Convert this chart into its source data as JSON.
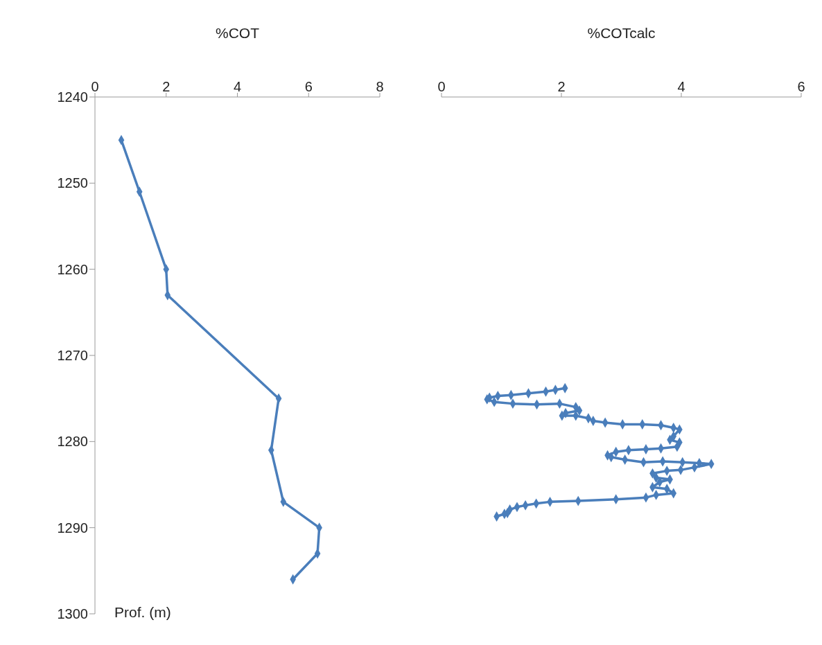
{
  "chart_data": [
    {
      "type": "line",
      "xlabel": "%COT",
      "ylabel": "Prof. (m)",
      "marker": "diamond",
      "xlim": [
        0,
        8
      ],
      "xticks": [
        0,
        2,
        4,
        6,
        8
      ],
      "ylim": [
        1300,
        1240
      ],
      "yticks": [
        1240,
        1250,
        1260,
        1270,
        1280,
        1290,
        1300
      ],
      "series": [
        {
          "color": "#4a7ebb",
          "x": [
            0.74,
            1.25,
            2.0,
            2.04,
            5.16,
            4.95,
            5.29,
            6.3,
            6.25,
            5.56
          ],
          "values": [
            1245,
            1251,
            1260,
            1263,
            1275,
            1281,
            1287,
            1290,
            1293,
            1296
          ]
        }
      ]
    },
    {
      "type": "line",
      "xlabel": "%COTcalc",
      "marker": "diamond",
      "tick_labels": "x",
      "xlim": [
        0,
        6
      ],
      "xticks": [
        0,
        2,
        4,
        6
      ],
      "ylim": [
        1300,
        1240
      ],
      "series": [
        {
          "color": "#4a7ebb",
          "x": [
            2.06,
            1.9,
            1.74,
            1.45,
            1.16,
            0.94,
            0.8,
            0.76,
            0.88,
            1.19,
            1.59,
            1.97,
            2.24,
            2.3,
            2.07,
            2.01,
            2.24,
            2.45,
            2.53,
            2.73,
            3.02,
            3.35,
            3.66,
            3.87,
            3.97,
            3.87,
            3.81,
            3.97,
            3.93,
            3.66,
            3.41,
            3.12,
            2.91,
            2.77,
            2.83,
            3.06,
            3.37,
            3.69,
            4.02,
            4.3,
            4.5,
            4.22,
            3.99,
            3.76,
            3.52,
            3.58,
            3.81,
            3.64,
            3.52,
            3.76,
            3.87,
            3.58,
            3.41,
            2.91,
            2.28,
            1.81,
            1.58,
            1.4,
            1.26,
            1.14,
            1.1,
            1.05,
            0.92
          ],
          "values": [
            1273.8,
            1274.0,
            1274.2,
            1274.4,
            1274.6,
            1274.7,
            1274.9,
            1275.1,
            1275.4,
            1275.6,
            1275.7,
            1275.6,
            1276.0,
            1276.4,
            1276.7,
            1277.0,
            1277.0,
            1277.3,
            1277.6,
            1277.8,
            1278.0,
            1278.0,
            1278.1,
            1278.4,
            1278.6,
            1279.4,
            1279.8,
            1280.1,
            1280.6,
            1280.8,
            1280.9,
            1281.0,
            1281.2,
            1281.6,
            1281.8,
            1282.1,
            1282.4,
            1282.3,
            1282.4,
            1282.5,
            1282.6,
            1283.0,
            1283.3,
            1283.4,
            1283.7,
            1284.2,
            1284.4,
            1284.7,
            1285.3,
            1285.5,
            1286.0,
            1286.2,
            1286.5,
            1286.7,
            1286.9,
            1287.0,
            1287.2,
            1287.4,
            1287.6,
            1287.9,
            1288.3,
            1288.4,
            1288.7
          ]
        }
      ]
    }
  ]
}
